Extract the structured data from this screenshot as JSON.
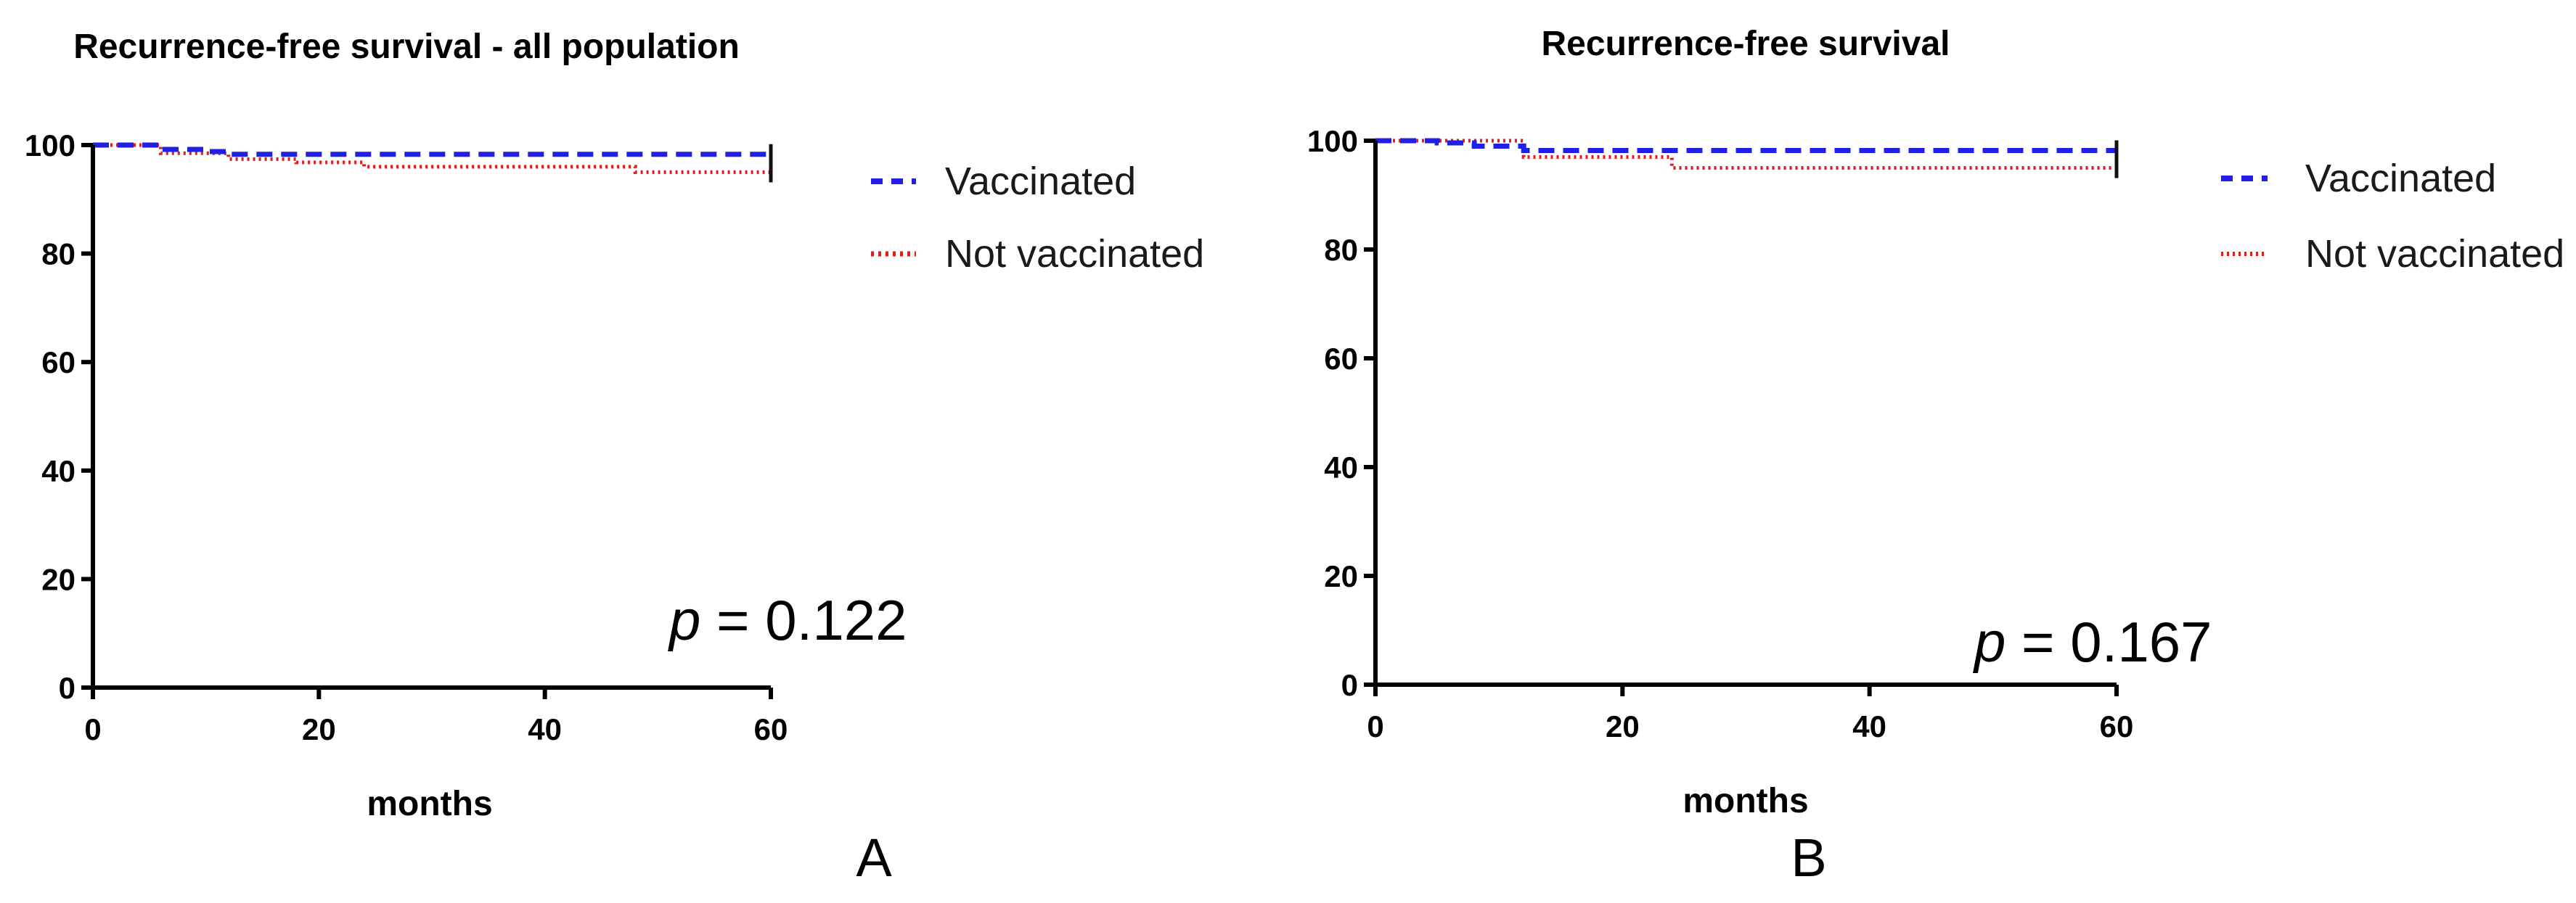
{
  "chart_data": [
    {
      "type": "line",
      "panel_label": "A",
      "title": "Recurrence-free survival - all population",
      "xlabel": "months",
      "ylabel": "",
      "xlim": [
        0,
        60
      ],
      "ylim": [
        0,
        100
      ],
      "x_ticks": [
        0,
        20,
        40,
        60
      ],
      "y_ticks": [
        0,
        20,
        40,
        60,
        80,
        100
      ],
      "p_value": {
        "prefix": "p",
        "equals": " = ",
        "value": "0.122"
      },
      "series": [
        {
          "name": "Vaccinated",
          "color": "#1f1fe6",
          "style": "dashed",
          "points": [
            [
              0,
              100
            ],
            [
              6,
              100
            ],
            [
              6,
              99.2
            ],
            [
              10,
              99.2
            ],
            [
              10,
              98.8
            ],
            [
              12,
              98.8
            ],
            [
              12,
              98.3
            ],
            [
              60,
              98.3
            ]
          ]
        },
        {
          "name": "Not vaccinated",
          "color": "#e41a1c",
          "style": "dotted",
          "points": [
            [
              0,
              100
            ],
            [
              6,
              100
            ],
            [
              6,
              98.5
            ],
            [
              12,
              98.5
            ],
            [
              12,
              97.4
            ],
            [
              18,
              97.4
            ],
            [
              18,
              96.8
            ],
            [
              24,
              96.8
            ],
            [
              24,
              96.0
            ],
            [
              48,
              96.0
            ],
            [
              48,
              95.0
            ],
            [
              60,
              95.0
            ]
          ]
        }
      ]
    },
    {
      "type": "line",
      "panel_label": "B",
      "title": "Recurrence-free survival",
      "xlabel": "months",
      "ylabel": "",
      "xlim": [
        0,
        60
      ],
      "ylim": [
        0,
        100
      ],
      "x_ticks": [
        0,
        20,
        40,
        60
      ],
      "y_ticks": [
        0,
        20,
        40,
        60,
        80,
        100
      ],
      "p_value": {
        "prefix": "p",
        "equals": " = ",
        "value": "0.167"
      },
      "series": [
        {
          "name": "Vaccinated",
          "color": "#1f1fe6",
          "style": "dashed",
          "points": [
            [
              0,
              100
            ],
            [
              5,
              100
            ],
            [
              5,
              99.6
            ],
            [
              8,
              99.6
            ],
            [
              8,
              99.0
            ],
            [
              12,
              99.0
            ],
            [
              12,
              98.2
            ],
            [
              60,
              98.2
            ]
          ]
        },
        {
          "name": "Not vaccinated",
          "color": "#e41a1c",
          "style": "dotted",
          "points": [
            [
              0,
              100
            ],
            [
              12,
              100
            ],
            [
              12,
              97.0
            ],
            [
              24,
              97.0
            ],
            [
              24,
              95.0
            ],
            [
              60,
              95.0
            ]
          ]
        }
      ]
    }
  ]
}
